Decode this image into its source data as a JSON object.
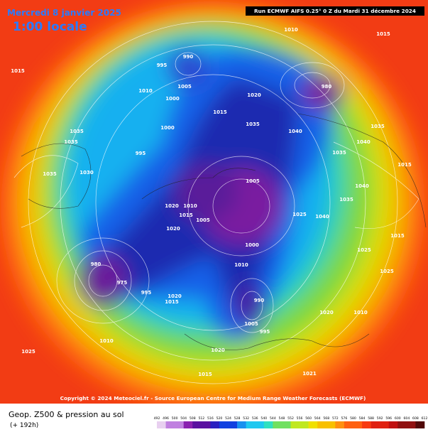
{
  "header": {
    "date": "Mercredi 8 janvier 2025",
    "time": "1:00 locale",
    "run": "Run ECMWF AIFS 0.25° 0 Z du Mardi 31 décembre 2024"
  },
  "copyright": "Copyright © 2024 Meteociel.fr - Source European Centre for Medium Range Weather Forecasts (ECMWF)",
  "footer": {
    "title": "Geop. Z500 & pression au sol",
    "lead": "(+ 192h)"
  },
  "legend": {
    "ticks": [
      492,
      496,
      500,
      504,
      508,
      512,
      516,
      520,
      524,
      528,
      532,
      536,
      540,
      544,
      548,
      552,
      556,
      560,
      564,
      568,
      572,
      576,
      580,
      584,
      588,
      592,
      596,
      600,
      604,
      608,
      612
    ]
  },
  "isobar_labels": [
    "1015",
    "1010",
    "1015",
    "990",
    "995",
    "1010",
    "1005",
    "1000",
    "1000",
    "1015",
    "1035",
    "1035",
    "1030",
    "1035",
    "995",
    "1020",
    "1035",
    "1040",
    "1035",
    "1020",
    "1015",
    "1010",
    "1005",
    "1020",
    "1005",
    "1025",
    "1040",
    "1035",
    "1040",
    "1015",
    "1025",
    "980",
    "975",
    "995",
    "1020",
    "1015",
    "990",
    "1010",
    "1000",
    "1005",
    "995",
    "1010",
    "1025",
    "1020",
    "1015",
    "1020",
    "1021",
    "1010",
    "1035",
    "1040",
    "980",
    "1015",
    "1025"
  ]
}
